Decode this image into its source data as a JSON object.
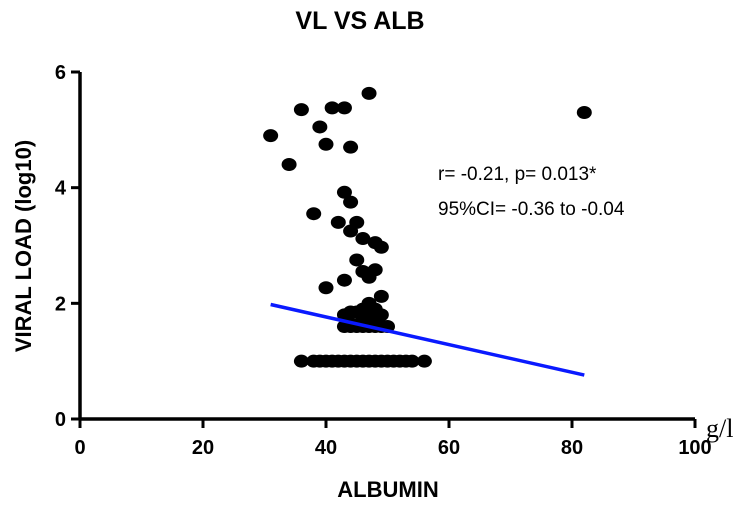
{
  "chart_data": {
    "type": "scatter",
    "title": "VL VS ALB",
    "xlabel": "ALBUMIN",
    "ylabel": "VIRAL LOAD (log10)",
    "x_unit": "g/l",
    "xlim": [
      0,
      100
    ],
    "ylim": [
      0,
      6
    ],
    "xticks": [
      0,
      20,
      40,
      60,
      80,
      100
    ],
    "yticks": [
      0,
      2,
      4,
      6
    ],
    "grid": false,
    "annotations": [
      "r= -0.21, p= 0.013*",
      "95%CI= -0.36 to -0.04"
    ],
    "series": [
      {
        "color": "#000000",
        "points": [
          [
            31,
            4.9
          ],
          [
            34,
            4.4
          ],
          [
            36,
            5.35
          ],
          [
            39,
            5.05
          ],
          [
            40,
            4.75
          ],
          [
            41,
            5.38
          ],
          [
            43,
            5.38
          ],
          [
            44,
            4.7
          ],
          [
            47,
            5.63
          ],
          [
            82,
            5.3
          ],
          [
            38,
            3.55
          ],
          [
            40,
            2.27
          ],
          [
            42,
            3.4
          ],
          [
            43,
            3.92
          ],
          [
            44,
            3.75
          ],
          [
            44,
            3.25
          ],
          [
            45,
            3.4
          ],
          [
            46,
            3.12
          ],
          [
            47,
            2.45
          ],
          [
            48,
            3.05
          ],
          [
            49,
            2.97
          ],
          [
            45,
            2.75
          ],
          [
            43,
            2.4
          ],
          [
            46,
            2.55
          ],
          [
            48,
            2.58
          ],
          [
            49,
            2.12
          ],
          [
            47,
            2.0
          ],
          [
            48,
            1.9
          ],
          [
            45,
            1.85
          ],
          [
            46,
            1.9
          ],
          [
            43,
            1.8
          ],
          [
            44,
            1.65
          ],
          [
            47,
            1.75
          ],
          [
            49,
            1.8
          ],
          [
            48,
            1.7
          ],
          [
            43,
            1.6
          ],
          [
            44,
            1.6
          ],
          [
            45,
            1.6
          ],
          [
            46,
            1.6
          ],
          [
            47,
            1.6
          ],
          [
            48,
            1.6
          ],
          [
            49,
            1.6
          ],
          [
            50,
            1.6
          ],
          [
            46,
            1.75
          ],
          [
            44,
            1.85
          ],
          [
            36,
            1.0
          ],
          [
            38,
            1.0
          ],
          [
            39,
            1.0
          ],
          [
            40,
            1.0
          ],
          [
            41,
            1.0
          ],
          [
            42,
            1.0
          ],
          [
            43,
            1.0
          ],
          [
            44,
            1.0
          ],
          [
            45,
            1.0
          ],
          [
            46,
            1.0
          ],
          [
            47,
            1.0
          ],
          [
            48,
            1.0
          ],
          [
            49,
            1.0
          ],
          [
            50,
            1.0
          ],
          [
            51,
            1.0
          ],
          [
            52,
            1.0
          ],
          [
            53,
            1.0
          ],
          [
            54,
            1.0
          ],
          [
            56,
            1.0
          ]
        ]
      }
    ],
    "regression_line": {
      "color": "#0a1aff",
      "from": [
        31,
        1.98
      ],
      "to": [
        82,
        0.76
      ]
    }
  }
}
